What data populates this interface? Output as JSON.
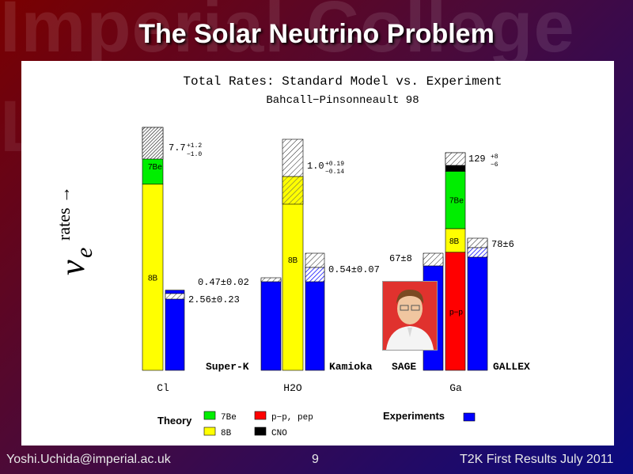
{
  "slide": {
    "title": "The Solar Neutrino Problem",
    "watermark": "Imperial College London",
    "footer_left": "Yoshi.Uchida@imperial.ac.uk",
    "page_number": "9",
    "footer_right": "T2K First Results July 2011",
    "y_label_symbol": "ν",
    "y_label_sub": "e",
    "y_label_text": "rates →"
  },
  "colors": {
    "7Be": "#00ee00",
    "8B": "#ffff00",
    "pp_pep": "#ff0000",
    "CNO": "#000000",
    "experiment": "#0000ff",
    "other": "#ff8888"
  },
  "chart_data": {
    "type": "bar",
    "title": "Total Rates: Standard Model vs. Experiment",
    "subtitle": "Bahcall−Pinsonneault 98",
    "groups": [
      {
        "name": "Cl",
        "theory": {
          "value": "7.7",
          "err_up": "+1.2",
          "err_dn": "−1.0",
          "components": [
            {
              "source": "8B",
              "value": 5.9,
              "label": "8B"
            },
            {
              "source": "7Be",
              "value": 1.15,
              "label": "7Be"
            },
            {
              "source": "other",
              "value": 0.65,
              "label": ""
            }
          ]
        },
        "experiment": {
          "label": "2.56±0.23",
          "fraction": 0.33
        }
      },
      {
        "name": "H2O",
        "theory": {
          "value": "1.0",
          "err_up": "+0.19",
          "err_dn": "−0.14",
          "components": [
            {
              "source": "8B",
              "value": 1.0,
              "label": "8B"
            }
          ]
        },
        "experiments": [
          {
            "name": "Super-K",
            "label": "0.47±0.02",
            "fraction": 0.47
          },
          {
            "name": "Kamioka",
            "label": "0.54±0.07",
            "fraction": 0.54
          }
        ]
      },
      {
        "name": "Ga",
        "theory": {
          "value": "129",
          "err_up": "+8",
          "err_dn": "−6",
          "components": [
            {
              "source": "pp_pep",
              "value": 70,
              "label": "p−p"
            },
            {
              "source": "8B",
              "value": 14,
              "label": "8B"
            },
            {
              "source": "7Be",
              "value": 34,
              "label": "7Be"
            },
            {
              "source": "CNO",
              "value": 11,
              "label": ""
            }
          ]
        },
        "experiments": [
          {
            "name": "SAGE",
            "label": "67±8",
            "value": 67
          },
          {
            "name": "GALLEX",
            "label": "78±6",
            "value": 78
          }
        ]
      }
    ],
    "legend": {
      "theory_title": "Theory",
      "experiments_title": "Experiments",
      "items": [
        {
          "source": "7Be",
          "label": "7Be"
        },
        {
          "source": "pp_pep",
          "label": "p−p, pep"
        },
        {
          "source": "8B",
          "label": "8B"
        },
        {
          "source": "CNO",
          "label": "CNO"
        }
      ]
    }
  }
}
